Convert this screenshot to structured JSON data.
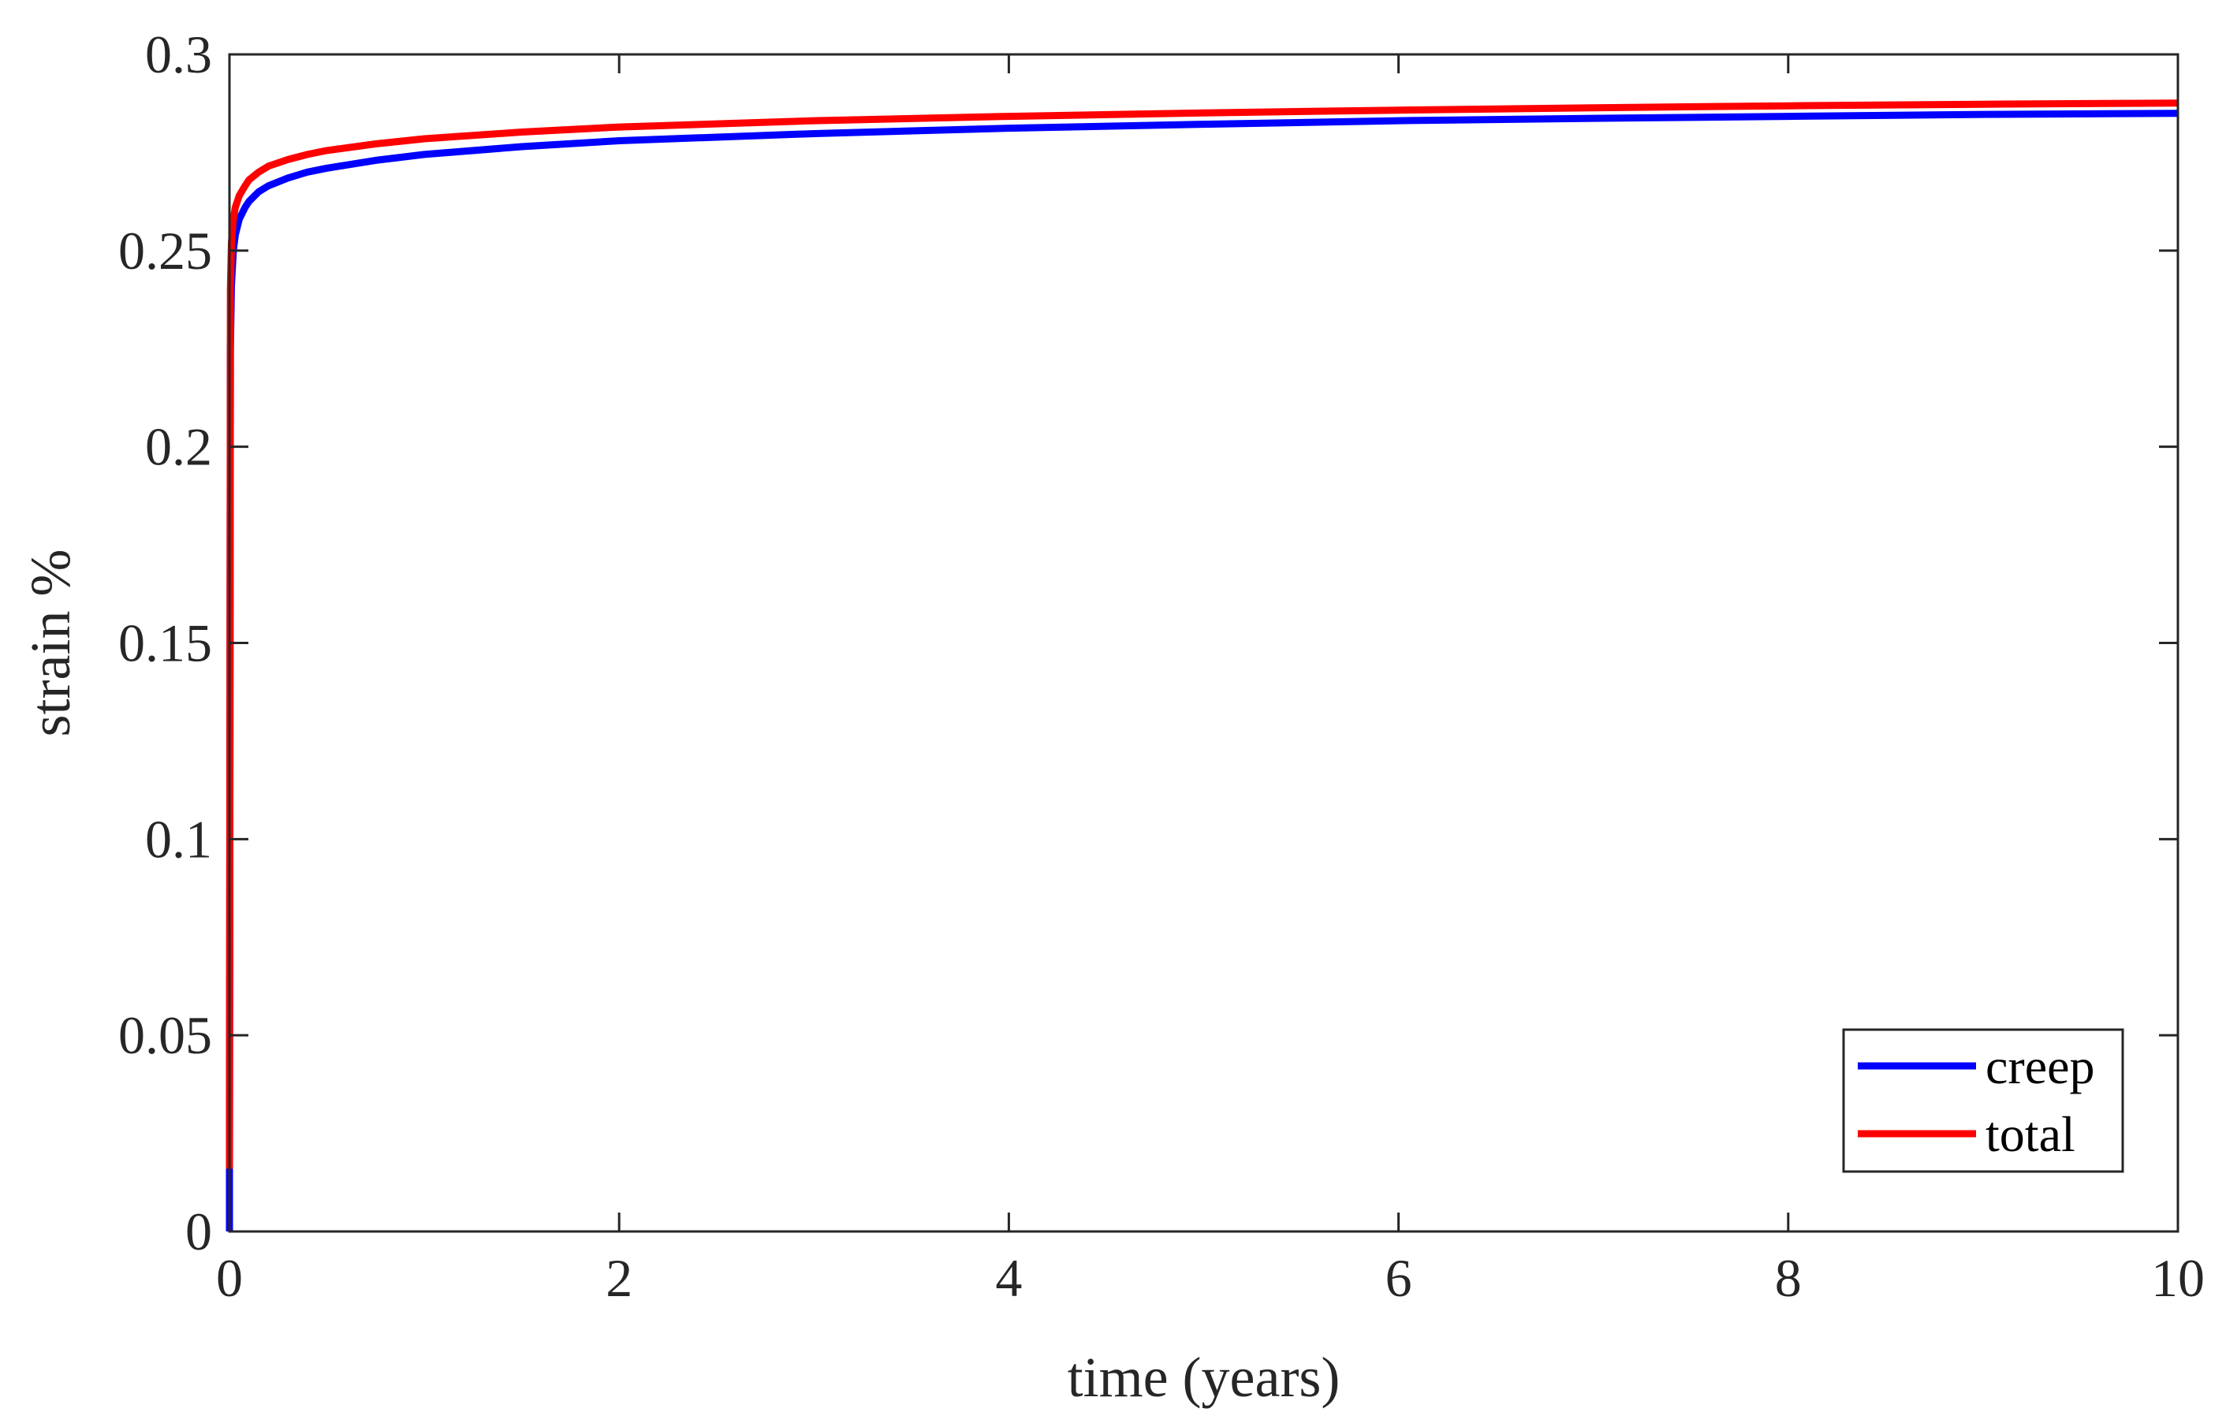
{
  "chart_data": {
    "type": "line",
    "title": "",
    "xlabel": "time (years)",
    "ylabel": "strain %",
    "xlim": [
      0,
      10
    ],
    "ylim": [
      0,
      0.3
    ],
    "xticks": [
      0,
      2,
      4,
      6,
      8,
      10
    ],
    "xtick_labels": [
      "0",
      "2",
      "4",
      "6",
      "8",
      "10"
    ],
    "yticks": [
      0,
      0.05,
      0.1,
      0.15,
      0.2,
      0.25,
      0.3
    ],
    "ytick_labels": [
      "0",
      "0.05",
      "0.1",
      "0.15",
      "0.2",
      "0.25",
      "0.3"
    ],
    "grid": false,
    "legend_position": "bottom-right",
    "series": [
      {
        "name": "creep",
        "color": "#0000ff",
        "x": [
          0,
          0,
          0.005,
          0.01,
          0.02,
          0.03,
          0.05,
          0.08,
          0.1,
          0.15,
          0.2,
          0.3,
          0.4,
          0.5,
          0.75,
          1,
          1.5,
          2,
          3,
          4,
          5,
          6,
          7,
          8,
          9,
          10
        ],
        "y": [
          0,
          0.016,
          0.225,
          0.241,
          0.25,
          0.254,
          0.258,
          0.261,
          0.2625,
          0.265,
          0.2665,
          0.2685,
          0.27,
          0.271,
          0.273,
          0.2745,
          0.2765,
          0.278,
          0.2798,
          0.2812,
          0.2822,
          0.2831,
          0.2837,
          0.2842,
          0.2847,
          0.285
        ]
      },
      {
        "name": "total",
        "color": "#ff0000",
        "x": [
          0,
          0,
          0.005,
          0.01,
          0.02,
          0.03,
          0.05,
          0.08,
          0.1,
          0.15,
          0.2,
          0.3,
          0.4,
          0.5,
          0.75,
          1,
          1.5,
          2,
          3,
          4,
          5,
          6,
          7,
          8,
          9,
          10
        ],
        "y": [
          0.016,
          0.018,
          0.24,
          0.252,
          0.258,
          0.261,
          0.264,
          0.2665,
          0.268,
          0.27,
          0.2715,
          0.2732,
          0.2745,
          0.2755,
          0.2772,
          0.2785,
          0.2802,
          0.2815,
          0.2831,
          0.2842,
          0.2851,
          0.2858,
          0.2864,
          0.2869,
          0.2873,
          0.2876
        ]
      }
    ]
  }
}
